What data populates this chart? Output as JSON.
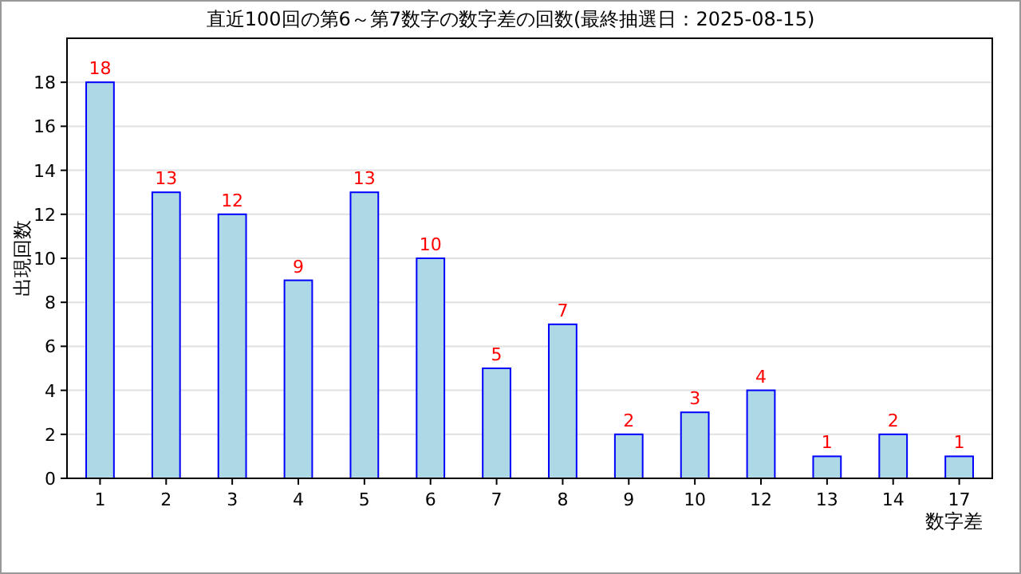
{
  "chart_data": {
    "type": "bar",
    "title": "直近100回の第6～第7数字の数字差の回数(最終抽選日：2025-08-15)",
    "xlabel": "数字差",
    "ylabel": "出現回数",
    "categories": [
      "1",
      "2",
      "3",
      "4",
      "5",
      "6",
      "7",
      "8",
      "9",
      "10",
      "12",
      "13",
      "14",
      "17"
    ],
    "values": [
      18,
      13,
      12,
      9,
      13,
      10,
      5,
      7,
      2,
      3,
      4,
      1,
      2,
      1
    ],
    "color": "#add8e6",
    "ylim": [
      0,
      20
    ],
    "yticks": [
      0,
      2,
      4,
      6,
      8,
      10,
      12,
      14,
      16,
      18
    ],
    "grid": "y",
    "data_labels": true
  }
}
